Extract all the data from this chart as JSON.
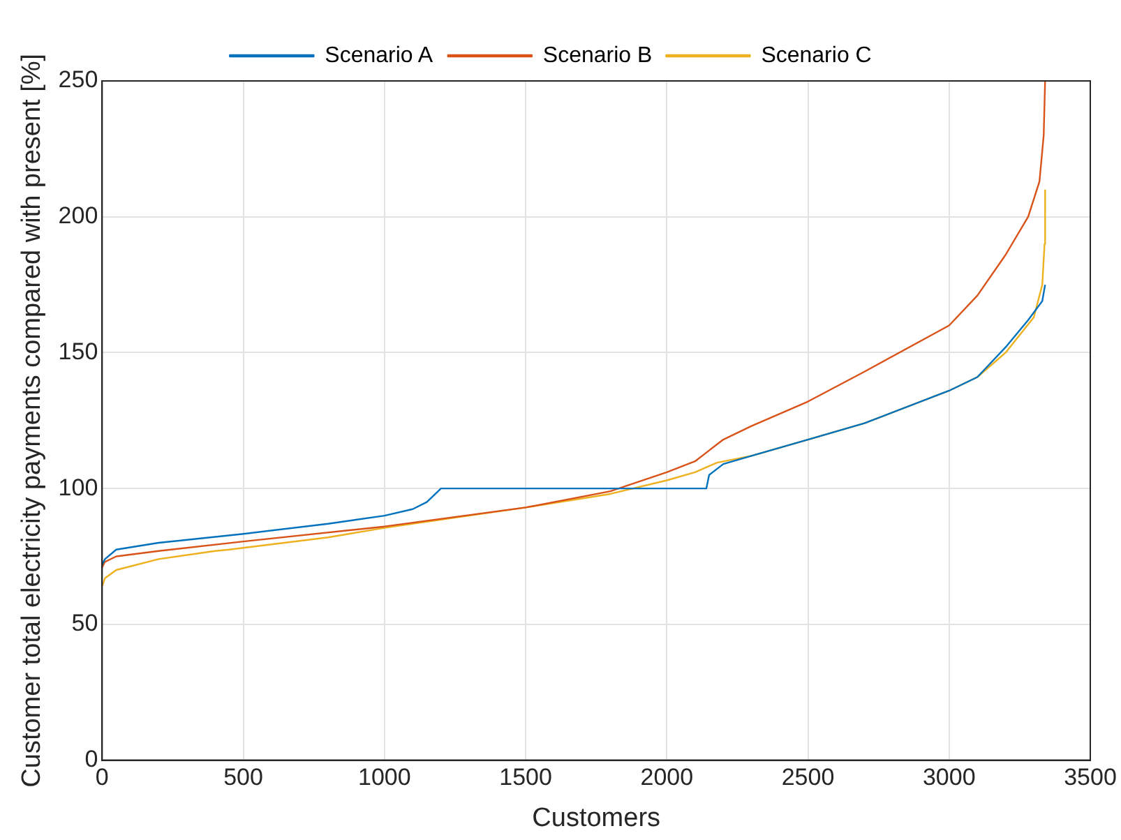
{
  "chart_data": {
    "type": "line",
    "xlabel": "Customers",
    "ylabel": "Customer total electricity payments compared with present [%]",
    "xlim": [
      0,
      3500
    ],
    "xticks": [
      0,
      500,
      1000,
      1500,
      2000,
      2500,
      3000,
      3500
    ],
    "ylim": [
      0,
      250
    ],
    "yticks": [
      0,
      50,
      100,
      150,
      200,
      250
    ],
    "grid": true,
    "legend": "top",
    "marker": "none",
    "line_style": "solid",
    "series": [
      {
        "name": "Scenario A",
        "color": "#0072bd",
        "x": [
          0,
          10,
          50,
          200,
          500,
          800,
          1000,
          1100,
          1150,
          1190,
          1200,
          2140,
          2150,
          2200,
          2300,
          2500,
          2700,
          3000,
          3100,
          3200,
          3280,
          3330,
          3340
        ],
        "values": [
          72,
          74,
          77.5,
          80,
          83.3,
          87,
          90,
          92.4,
          95,
          99,
          100,
          100,
          105,
          109,
          112,
          118,
          124,
          136,
          141,
          152,
          162,
          169,
          175
        ]
      },
      {
        "name": "Scenario B",
        "color": "#d95319",
        "x": [
          0,
          10,
          50,
          200,
          500,
          1000,
          1500,
          1800,
          2000,
          2100,
          2150,
          2200,
          2300,
          2500,
          2700,
          3000,
          3100,
          3200,
          3280,
          3320,
          3335,
          3340
        ],
        "values": [
          71,
          73,
          75,
          77,
          80.5,
          86,
          93,
          99,
          106,
          110,
          114,
          118,
          123,
          132,
          143,
          160,
          171,
          186,
          200,
          213,
          230,
          250
        ]
      },
      {
        "name": "Scenario C",
        "color": "#edb120",
        "x": [
          0,
          10,
          50,
          200,
          400,
          450,
          800,
          1000,
          1500,
          1800,
          2000,
          2100,
          2178,
          2300,
          2500,
          2700,
          3000,
          3100,
          3200,
          3300,
          3330,
          3338,
          3340
        ],
        "values": [
          64,
          67,
          70,
          74,
          77,
          77.5,
          82,
          85.5,
          93,
          98,
          103,
          106,
          109.5,
          112,
          118,
          124,
          136,
          141,
          150,
          163,
          175,
          190,
          210
        ]
      }
    ]
  }
}
